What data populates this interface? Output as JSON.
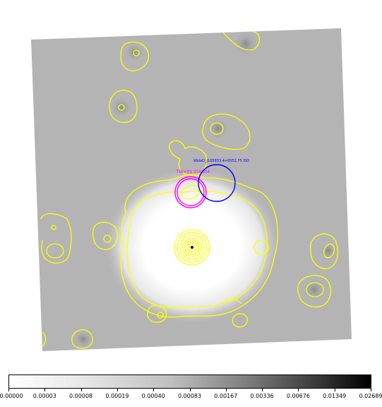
{
  "image": {
    "colormap": "grayscale-inverted",
    "contour_color": "#ffff00",
    "region_colors": {
      "magenta": "#ff00ff",
      "blue": "#0000ff"
    }
  },
  "regions": [
    {
      "id": "magenta-region",
      "label": "TIB&#60;01 016004",
      "color": "#ff00ff"
    },
    {
      "id": "blue-region",
      "label": "WolaO_J165833.4+0352.75 ISO",
      "color": "#0000ff"
    }
  ],
  "colorbar": {
    "ticks": [
      "0.00000",
      "0.00003",
      "0.00008",
      "0.00019",
      "0.00040",
      "0.00083",
      "0.00167",
      "0.00336",
      "0.00676",
      "0.01349",
      "0.02689"
    ]
  }
}
